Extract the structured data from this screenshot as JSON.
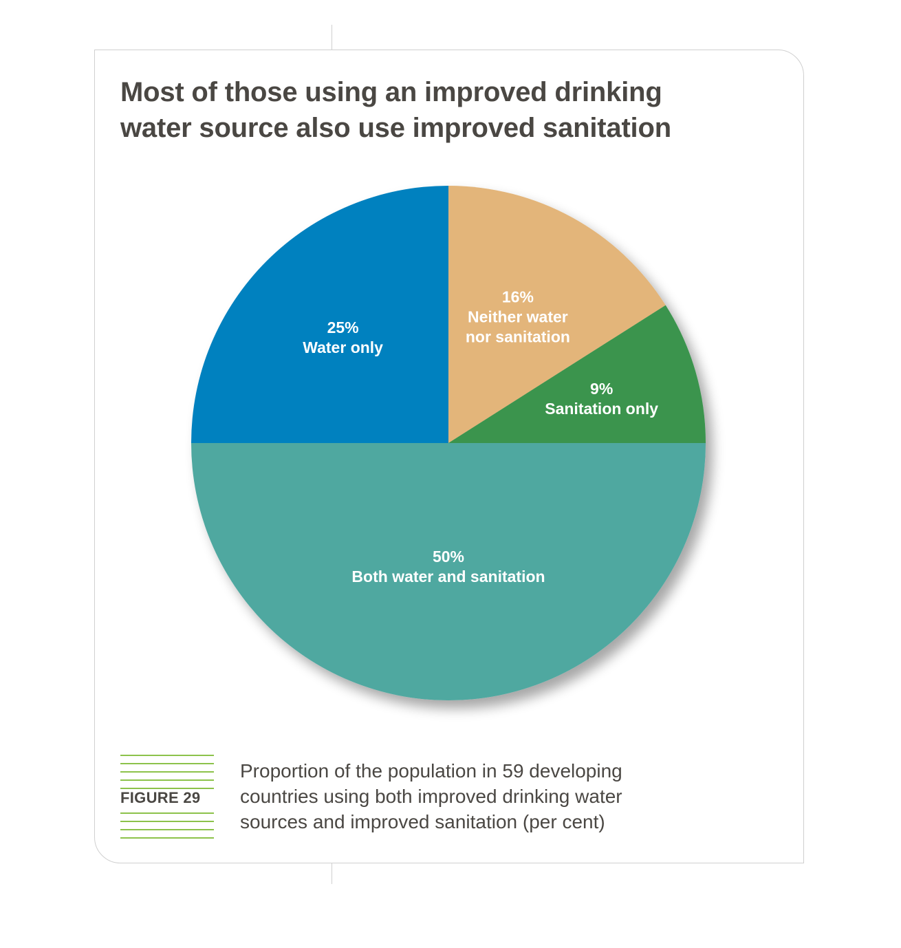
{
  "title_lines": [
    "Most of those using an improved drinking",
    "water source also use improved sanitation"
  ],
  "figure": {
    "label": "FIGURE 29",
    "accent_color": "#8cc24a",
    "caption_lines": [
      "Proportion of the population in 59 developing",
      "countries using both improved drinking water",
      "sources and improved sanitation (per cent)"
    ]
  },
  "chart_data": {
    "type": "pie",
    "title": "Most of those using an improved drinking water source also use improved sanitation",
    "start": "12 o'clock",
    "direction": "clockwise",
    "slices": [
      {
        "pct_label": "16%",
        "name_lines": [
          "Neither water",
          "nor sanitation"
        ],
        "value": 16,
        "color": "#e3b57a"
      },
      {
        "pct_label": "9%",
        "name_lines": [
          "Sanitation only"
        ],
        "value": 9,
        "color": "#3a944e"
      },
      {
        "pct_label": "50%",
        "name_lines": [
          "Both water and sanitation"
        ],
        "value": 50,
        "color": "#4fa8a0"
      },
      {
        "pct_label": "25%",
        "name_lines": [
          "Water only"
        ],
        "value": 25,
        "color": "#0481bf"
      }
    ]
  }
}
